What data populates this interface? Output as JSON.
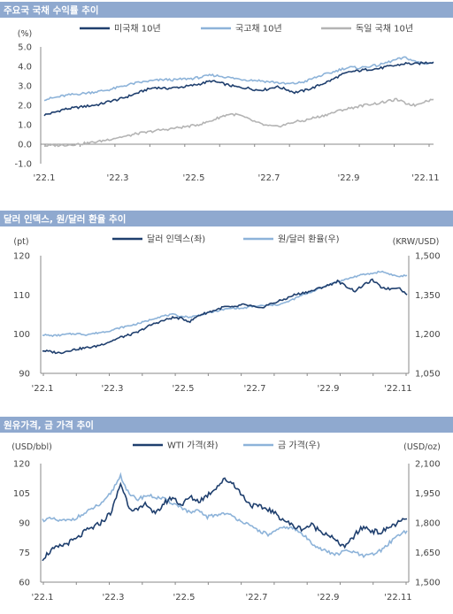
{
  "chart_data": [
    {
      "type": "line",
      "title": "주요국 국채 수익률 추이",
      "unit_left": "(%)",
      "ylim": [
        -1.0,
        5.0
      ],
      "yticks": [
        "5.0",
        "4.0",
        "3.0",
        "2.0",
        "1.0",
        "0.0",
        "-1.0"
      ],
      "xticks": [
        "'22.1",
        "'22.3",
        "'22.5",
        "'22.7",
        "'22.9",
        "'22.11"
      ],
      "series": [
        {
          "name": "미국채 10년",
          "color": "#1f3f6e",
          "values": [
            1.5,
            1.62,
            1.78,
            1.85,
            1.92,
            1.98,
            2.05,
            2.2,
            2.3,
            2.45,
            2.62,
            2.8,
            2.92,
            2.86,
            2.9,
            2.95,
            3.02,
            3.12,
            3.25,
            3.15,
            3.02,
            2.92,
            2.88,
            2.78,
            2.82,
            2.96,
            2.84,
            2.66,
            2.75,
            2.9,
            3.1,
            3.3,
            3.55,
            3.72,
            3.78,
            3.85,
            3.88,
            3.98,
            4.05,
            4.15,
            4.12,
            4.18,
            4.22
          ]
        },
        {
          "name": "국고채 10년",
          "color": "#8db3d9",
          "values": [
            2.3,
            2.38,
            2.48,
            2.55,
            2.6,
            2.66,
            2.72,
            2.8,
            2.92,
            3.05,
            3.15,
            3.22,
            3.28,
            3.32,
            3.3,
            3.35,
            3.38,
            3.45,
            3.55,
            3.5,
            3.42,
            3.35,
            3.3,
            3.28,
            3.22,
            3.18,
            3.1,
            3.12,
            3.2,
            3.38,
            3.55,
            3.68,
            3.85,
            3.95,
            3.92,
            4.0,
            4.05,
            4.2,
            4.35,
            4.45,
            4.25,
            4.15,
            4.2
          ]
        },
        {
          "name": "독일 국채 10년",
          "color": "#b4b4b4",
          "values": [
            -0.08,
            -0.06,
            -0.05,
            -0.02,
            0.02,
            0.08,
            0.15,
            0.25,
            0.35,
            0.42,
            0.55,
            0.6,
            0.7,
            0.75,
            0.82,
            0.88,
            0.95,
            1.05,
            1.2,
            1.4,
            1.55,
            1.5,
            1.3,
            1.1,
            0.95,
            0.9,
            1.0,
            1.15,
            1.2,
            1.35,
            1.45,
            1.6,
            1.75,
            1.85,
            1.95,
            2.05,
            2.1,
            2.2,
            2.3,
            2.1,
            2.0,
            2.2,
            2.3
          ]
        }
      ]
    },
    {
      "type": "line",
      "title": "달러 인덱스, 원/달러 환율 추이",
      "unit_left": "(pt)",
      "unit_right": "(KRW/USD)",
      "ylim_left": [
        90,
        120
      ],
      "ylim_right": [
        1050,
        1500
      ],
      "yticks_left": [
        "120",
        "110",
        "100",
        "90"
      ],
      "yticks_right": [
        "1,500",
        "1,350",
        "1,200",
        "1,050"
      ],
      "xticks": [
        "'22.1",
        "'22.3",
        "'22.5",
        "'22.7",
        "'22.9",
        "'22.11"
      ],
      "series": [
        {
          "name": "달러 인덱스(좌)",
          "axis": "left",
          "color": "#1f3f6e",
          "values": [
            95.8,
            95.5,
            95.2,
            95.8,
            96.2,
            96.5,
            96.8,
            97.5,
            98.3,
            99.2,
            99.8,
            100.5,
            101.8,
            102.8,
            103.5,
            104.2,
            104.0,
            103.2,
            104.8,
            105.5,
            106.2,
            107.0,
            106.8,
            107.5,
            107.2,
            106.5,
            107.5,
            108.2,
            109.0,
            110.0,
            110.5,
            111.0,
            111.8,
            112.5,
            113.5,
            112.2,
            111.0,
            112.5,
            113.8,
            112.0,
            111.5,
            112.0,
            110.0
          ]
        },
        {
          "name": "원/달러 환율(우)",
          "axis": "right",
          "color": "#8db3d9",
          "values": [
            1198,
            1194,
            1196,
            1200,
            1202,
            1198,
            1203,
            1208,
            1215,
            1225,
            1232,
            1240,
            1250,
            1262,
            1270,
            1275,
            1268,
            1265,
            1272,
            1280,
            1288,
            1295,
            1300,
            1298,
            1305,
            1308,
            1310,
            1312,
            1320,
            1335,
            1350,
            1362,
            1375,
            1390,
            1400,
            1410,
            1420,
            1428,
            1432,
            1440,
            1430,
            1420,
            1425
          ]
        }
      ]
    },
    {
      "type": "line",
      "title": "원유가격, 금 가격 추이",
      "unit_left": "(USD/bbl)",
      "unit_right": "(USD/oz)",
      "ylim_left": [
        60,
        120
      ],
      "ylim_right": [
        1500,
        2100
      ],
      "yticks_left": [
        "120",
        "105",
        "90",
        "75",
        "60"
      ],
      "yticks_right": [
        "2,100",
        "1,950",
        "1,800",
        "1,650",
        "1,500"
      ],
      "xticks": [
        "'22.1",
        "'22.3",
        "'22.5",
        "'22.7",
        "'22.9",
        "'22.11"
      ],
      "series": [
        {
          "name": "WTI 가격(좌)",
          "axis": "left",
          "color": "#1f3f6e",
          "values": [
            72,
            76,
            78,
            80,
            82,
            86,
            88,
            91,
            96,
            110,
            98,
            96,
            100,
            94,
            100,
            103,
            99,
            103,
            101,
            104,
            108,
            112,
            110,
            104,
            99,
            98,
            97,
            94,
            91,
            88,
            87,
            89,
            86,
            84,
            80,
            78,
            84,
            88,
            86,
            85,
            88,
            90,
            92
          ]
        },
        {
          "name": "금 가격(우)",
          "axis": "right",
          "color": "#8db3d9",
          "values": [
            1815,
            1820,
            1810,
            1812,
            1828,
            1850,
            1880,
            1900,
            1960,
            2040,
            1940,
            1920,
            1940,
            1930,
            1920,
            1900,
            1880,
            1850,
            1860,
            1830,
            1840,
            1850,
            1830,
            1810,
            1780,
            1760,
            1740,
            1760,
            1780,
            1770,
            1740,
            1700,
            1670,
            1650,
            1640,
            1660,
            1650,
            1630,
            1640,
            1660,
            1700,
            1740,
            1760
          ]
        }
      ]
    }
  ]
}
